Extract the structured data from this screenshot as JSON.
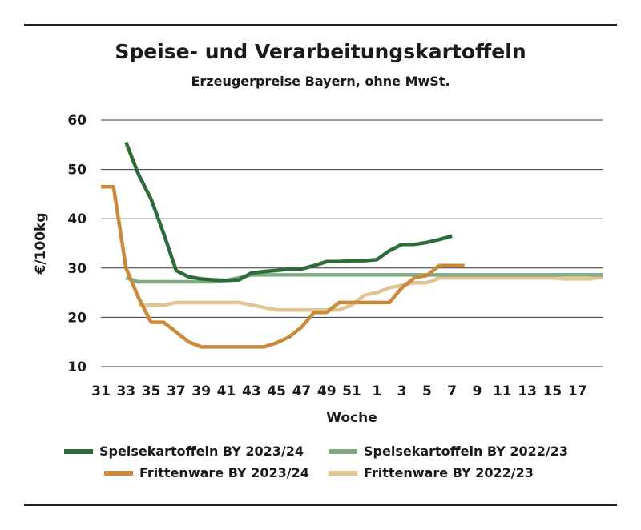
{
  "chart_data": {
    "type": "line",
    "title": "Speise- und Verarbeitungskartoffeln",
    "subtitle": "Erzeugerpreise Bayern, ohne MwSt.",
    "xlabel": "Woche",
    "ylabel": "€/100kg",
    "ylim": [
      10,
      60
    ],
    "yticks": [
      "10",
      "20",
      "30",
      "40",
      "50",
      "60"
    ],
    "xticks": [
      "31",
      "33",
      "35",
      "37",
      "39",
      "41",
      "43",
      "45",
      "47",
      "49",
      "51",
      "1",
      "3",
      "5",
      "7",
      "9",
      "11",
      "13",
      "15",
      "17"
    ],
    "grid": "horizontal",
    "legend_placement": "bottom",
    "series": [
      {
        "name": "Speisekartoffeln BY 2023/24",
        "color": "#2e6b3a",
        "points": [
          [
            2,
            55.5
          ],
          [
            3,
            49
          ],
          [
            4,
            44
          ],
          [
            5,
            37
          ],
          [
            6,
            29.5
          ],
          [
            7,
            28.2
          ],
          [
            8,
            27.8
          ],
          [
            9,
            27.6
          ],
          [
            10,
            27.5
          ],
          [
            11,
            27.6
          ],
          [
            12,
            29
          ],
          [
            13,
            29.3
          ],
          [
            14,
            29.5
          ],
          [
            15,
            29.8
          ],
          [
            16,
            29.8
          ],
          [
            17,
            30.5
          ],
          [
            18,
            31.3
          ],
          [
            19,
            31.3
          ],
          [
            20,
            31.5
          ],
          [
            21,
            31.5
          ],
          [
            22,
            31.7
          ],
          [
            23,
            33.5
          ],
          [
            24,
            34.8
          ],
          [
            25,
            34.8
          ],
          [
            26,
            35.2
          ],
          [
            27,
            35.8
          ],
          [
            28,
            36.5
          ]
        ]
      },
      {
        "name": "Speisekartoffeln BY 2022/23",
        "color": "#7faa84",
        "points": [
          [
            2,
            28
          ],
          [
            3,
            27.2
          ],
          [
            4,
            27.2
          ],
          [
            5,
            27.2
          ],
          [
            6,
            27.2
          ],
          [
            7,
            27.2
          ],
          [
            8,
            27.2
          ],
          [
            9,
            27.2
          ],
          [
            10,
            27.5
          ],
          [
            11,
            28
          ],
          [
            12,
            28.6
          ],
          [
            13,
            28.6
          ],
          [
            14,
            28.6
          ],
          [
            15,
            28.6
          ],
          [
            16,
            28.6
          ],
          [
            17,
            28.6
          ],
          [
            18,
            28.6
          ],
          [
            19,
            28.6
          ],
          [
            20,
            28.6
          ],
          [
            21,
            28.6
          ],
          [
            22,
            28.6
          ],
          [
            23,
            28.6
          ],
          [
            24,
            28.6
          ],
          [
            25,
            28.6
          ],
          [
            26,
            28.6
          ],
          [
            27,
            28.6
          ],
          [
            28,
            28.6
          ],
          [
            29,
            28.6
          ],
          [
            30,
            28.6
          ],
          [
            31,
            28.6
          ],
          [
            32,
            28.6
          ],
          [
            33,
            28.6
          ],
          [
            34,
            28.6
          ],
          [
            35,
            28.6
          ],
          [
            36,
            28.6
          ],
          [
            37,
            28.6
          ],
          [
            38,
            28.6
          ],
          [
            39,
            28.6
          ],
          [
            40,
            28.6
          ]
        ]
      },
      {
        "name": "Frittenware BY 2023/24",
        "color": "#c98a3c",
        "points": [
          [
            0,
            46.5
          ],
          [
            1,
            46.5
          ],
          [
            2,
            30
          ],
          [
            3,
            24
          ],
          [
            4,
            19
          ],
          [
            5,
            19
          ],
          [
            6,
            17
          ],
          [
            7,
            15
          ],
          [
            8,
            14
          ],
          [
            9,
            14
          ],
          [
            10,
            14
          ],
          [
            11,
            14
          ],
          [
            12,
            14
          ],
          [
            13,
            14
          ],
          [
            14,
            14.8
          ],
          [
            15,
            16
          ],
          [
            16,
            18
          ],
          [
            17,
            21
          ],
          [
            18,
            21
          ],
          [
            19,
            23
          ],
          [
            20,
            23
          ],
          [
            21,
            23
          ],
          [
            22,
            23
          ],
          [
            23,
            23
          ],
          [
            24,
            26
          ],
          [
            25,
            28
          ],
          [
            26,
            28.5
          ],
          [
            27,
            30.5
          ],
          [
            28,
            30.5
          ],
          [
            29,
            30.5
          ]
        ]
      },
      {
        "name": "Frittenware BY 2022/23",
        "color": "#e1c590",
        "points": [
          [
            3,
            22.5
          ],
          [
            4,
            22.5
          ],
          [
            5,
            22.5
          ],
          [
            6,
            23
          ],
          [
            7,
            23
          ],
          [
            8,
            23
          ],
          [
            9,
            23
          ],
          [
            10,
            23
          ],
          [
            11,
            23
          ],
          [
            12,
            22.5
          ],
          [
            13,
            22
          ],
          [
            14,
            21.5
          ],
          [
            15,
            21.5
          ],
          [
            16,
            21.5
          ],
          [
            17,
            21.5
          ],
          [
            18,
            21.5
          ],
          [
            19,
            21.5
          ],
          [
            20,
            22.5
          ],
          [
            21,
            24.5
          ],
          [
            22,
            25
          ],
          [
            23,
            26
          ],
          [
            24,
            26.5
          ],
          [
            25,
            27
          ],
          [
            26,
            27
          ],
          [
            27,
            28
          ],
          [
            28,
            28
          ],
          [
            29,
            28
          ],
          [
            30,
            28
          ],
          [
            31,
            28
          ],
          [
            32,
            28
          ],
          [
            33,
            28
          ],
          [
            34,
            28
          ],
          [
            35,
            28
          ],
          [
            36,
            28
          ],
          [
            37,
            27.8
          ],
          [
            38,
            27.8
          ],
          [
            39,
            27.8
          ],
          [
            40,
            28.2
          ]
        ]
      }
    ]
  }
}
